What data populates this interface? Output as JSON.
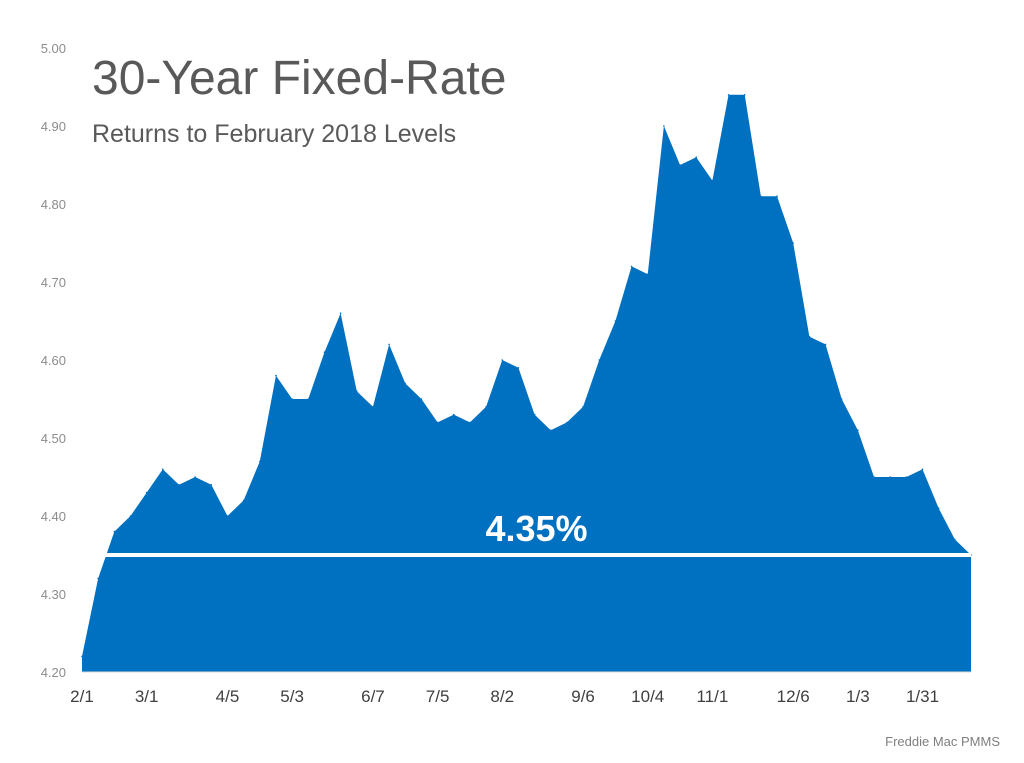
{
  "chart_data": {
    "type": "area",
    "title": "30-Year Fixed-Rate",
    "subtitle": "Returns to February 2018 Levels",
    "xlabel": "",
    "ylabel": "",
    "ylim": [
      4.2,
      5.0
    ],
    "yticks": [
      "4.20",
      "4.30",
      "4.40",
      "4.50",
      "4.60",
      "4.70",
      "4.80",
      "4.90",
      "5.00"
    ],
    "xtick_labels": [
      {
        "index": 0,
        "label": "2/1"
      },
      {
        "index": 4,
        "label": "3/1"
      },
      {
        "index": 9,
        "label": "4/5"
      },
      {
        "index": 13,
        "label": "5/3"
      },
      {
        "index": 18,
        "label": "6/7"
      },
      {
        "index": 22,
        "label": "7/5"
      },
      {
        "index": 26,
        "label": "8/2"
      },
      {
        "index": 31,
        "label": "9/6"
      },
      {
        "index": 35,
        "label": "10/4"
      },
      {
        "index": 39,
        "label": "11/1"
      },
      {
        "index": 44,
        "label": "12/6"
      },
      {
        "index": 48,
        "label": "1/3"
      },
      {
        "index": 52,
        "label": "1/31"
      }
    ],
    "series": [
      {
        "color": "#0070c0",
        "values": [
          4.22,
          4.32,
          4.38,
          4.4,
          4.43,
          4.46,
          4.44,
          4.45,
          4.44,
          4.4,
          4.42,
          4.47,
          4.58,
          4.55,
          4.55,
          4.61,
          4.66,
          4.56,
          4.54,
          4.62,
          4.57,
          4.55,
          4.52,
          4.53,
          4.52,
          4.54,
          4.6,
          4.59,
          4.53,
          4.51,
          4.52,
          4.54,
          4.6,
          4.65,
          4.72,
          4.71,
          4.9,
          4.85,
          4.86,
          4.83,
          4.94,
          4.94,
          4.81,
          4.81,
          4.75,
          4.63,
          4.62,
          4.55,
          4.51,
          4.45,
          4.45,
          4.45,
          4.46,
          4.41,
          4.37,
          4.35
        ]
      }
    ],
    "reference_line": {
      "value": 4.35,
      "label": "4.35%",
      "color": "#ffffff"
    },
    "grid": false,
    "legend": "none",
    "source": "Freddie Mac PMMS"
  }
}
